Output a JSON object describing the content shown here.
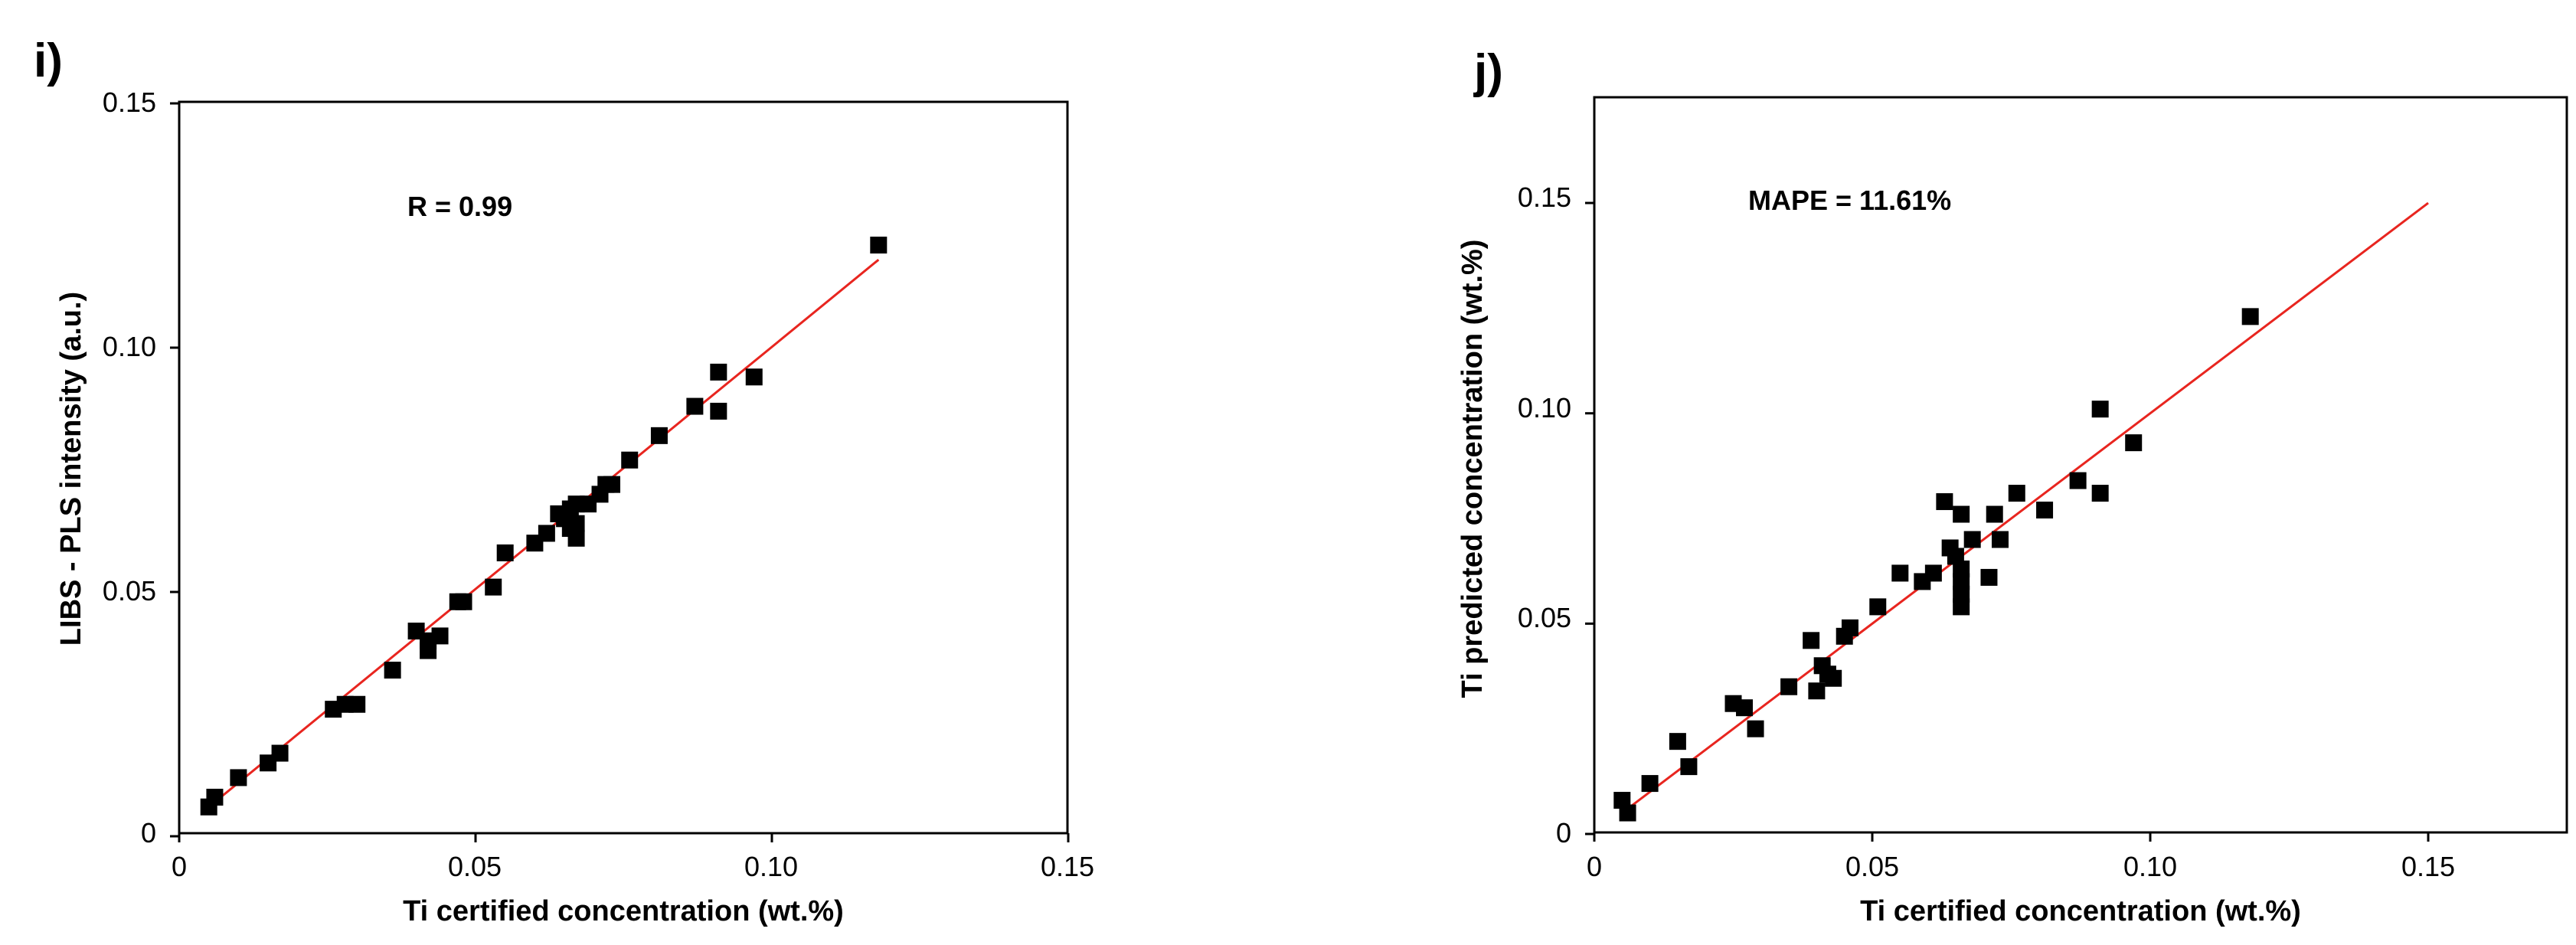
{
  "chart_data": [
    {
      "panel_label": "i)",
      "type": "scatter",
      "xlabel": "Ti certified concentration (wt.%)",
      "ylabel": "LIBS - PLS intensity (a.u.)",
      "xlim": [
        0,
        0.15
      ],
      "ylim": [
        0,
        0.15
      ],
      "x_ticks": [
        "0",
        "0.05",
        "0.10",
        "0.15"
      ],
      "y_ticks": [
        "0",
        "0.05",
        "0.10",
        "0.15"
      ],
      "x_tick_values": [
        0,
        0.05,
        0.1,
        0.15
      ],
      "y_tick_values": [
        0,
        0.05,
        0.1,
        0.15
      ],
      "annotation": "R = 0.99",
      "fit_line": {
        "x": [
          0.005,
          0.118
        ],
        "y": [
          0.006,
          0.118
        ],
        "color": "#e8251f"
      },
      "marker_color": "#000000",
      "points": {
        "x": [
          0.005,
          0.006,
          0.01,
          0.015,
          0.017,
          0.026,
          0.028,
          0.03,
          0.036,
          0.04,
          0.042,
          0.042,
          0.044,
          0.047,
          0.048,
          0.053,
          0.055,
          0.06,
          0.062,
          0.064,
          0.065,
          0.066,
          0.066,
          0.067,
          0.067,
          0.067,
          0.069,
          0.071,
          0.072,
          0.073,
          0.076,
          0.081,
          0.087,
          0.091,
          0.091,
          0.097,
          0.118
        ],
        "y": [
          0.006,
          0.008,
          0.012,
          0.015,
          0.017,
          0.026,
          0.027,
          0.027,
          0.034,
          0.042,
          0.04,
          0.038,
          0.041,
          0.048,
          0.048,
          0.051,
          0.058,
          0.06,
          0.062,
          0.066,
          0.065,
          0.067,
          0.063,
          0.061,
          0.068,
          0.064,
          0.068,
          0.07,
          0.072,
          0.072,
          0.077,
          0.082,
          0.088,
          0.095,
          0.087,
          0.094,
          0.121
        ]
      }
    },
    {
      "panel_label": "j)",
      "type": "scatter",
      "xlabel": "Ti certified concentration (wt.%)",
      "ylabel": "Ti predicted concentration (wt.%)",
      "xlim": [
        0,
        0.175
      ],
      "ylim": [
        0,
        0.175
      ],
      "x_ticks": [
        "0",
        "0.05",
        "0.10",
        "0.15"
      ],
      "y_ticks": [
        "0",
        "0.05",
        "0.10",
        "0.15"
      ],
      "x_tick_values": [
        0,
        0.05,
        0.1,
        0.15
      ],
      "y_tick_values": [
        0,
        0.05,
        0.1,
        0.15
      ],
      "annotation": "MAPE = 11.61%",
      "fit_line": {
        "x": [
          0.005,
          0.15
        ],
        "y": [
          0.005,
          0.15
        ],
        "color": "#e8251f"
      },
      "marker_color": "#000000",
      "points": {
        "x": [
          0.005,
          0.006,
          0.01,
          0.015,
          0.017,
          0.025,
          0.027,
          0.029,
          0.035,
          0.039,
          0.04,
          0.041,
          0.042,
          0.043,
          0.045,
          0.046,
          0.051,
          0.055,
          0.059,
          0.061,
          0.063,
          0.064,
          0.065,
          0.066,
          0.066,
          0.066,
          0.066,
          0.066,
          0.068,
          0.071,
          0.072,
          0.073,
          0.076,
          0.081,
          0.087,
          0.091,
          0.091,
          0.097,
          0.118
        ],
        "y": [
          0.008,
          0.005,
          0.012,
          0.022,
          0.016,
          0.031,
          0.03,
          0.025,
          0.035,
          0.046,
          0.034,
          0.04,
          0.038,
          0.037,
          0.047,
          0.049,
          0.054,
          0.062,
          0.06,
          0.062,
          0.079,
          0.068,
          0.066,
          0.076,
          0.063,
          0.06,
          0.057,
          0.054,
          0.07,
          0.061,
          0.076,
          0.07,
          0.081,
          0.077,
          0.084,
          0.101,
          0.081,
          0.093,
          0.123
        ]
      }
    }
  ]
}
